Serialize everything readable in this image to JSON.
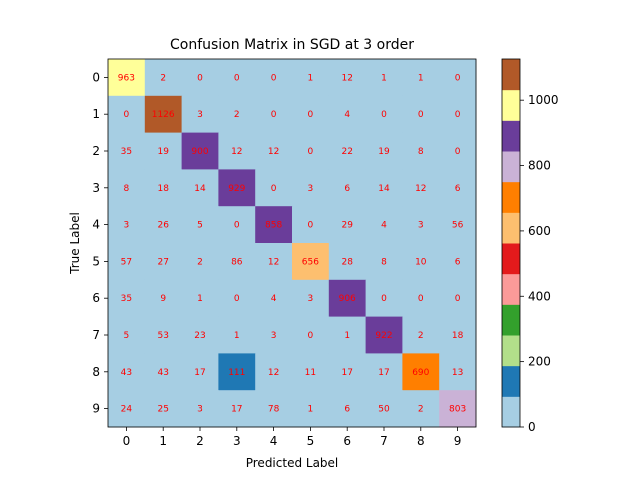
{
  "chart_data": {
    "type": "heatmap",
    "title": "Confusion Matrix in SGD at 3 order",
    "xlabel": "Predicted Label",
    "ylabel": "True Label",
    "x_categories": [
      "0",
      "1",
      "2",
      "3",
      "4",
      "5",
      "6",
      "7",
      "8",
      "9"
    ],
    "y_categories": [
      "0",
      "1",
      "2",
      "3",
      "4",
      "5",
      "6",
      "7",
      "8",
      "9"
    ],
    "matrix": [
      [
        963,
        2,
        0,
        0,
        0,
        1,
        12,
        1,
        1,
        0
      ],
      [
        0,
        1126,
        3,
        2,
        0,
        0,
        4,
        0,
        0,
        0
      ],
      [
        35,
        19,
        900,
        12,
        12,
        0,
        22,
        19,
        8,
        0
      ],
      [
        8,
        18,
        14,
        929,
        0,
        3,
        6,
        14,
        12,
        6
      ],
      [
        3,
        26,
        5,
        0,
        858,
        0,
        29,
        4,
        3,
        56
      ],
      [
        57,
        27,
        2,
        86,
        12,
        656,
        28,
        8,
        10,
        6
      ],
      [
        35,
        9,
        1,
        0,
        4,
        3,
        906,
        0,
        0,
        0
      ],
      [
        5,
        53,
        23,
        1,
        3,
        0,
        1,
        922,
        2,
        18
      ],
      [
        43,
        43,
        17,
        111,
        12,
        11,
        17,
        17,
        690,
        13
      ],
      [
        24,
        25,
        3,
        17,
        78,
        1,
        6,
        50,
        2,
        803
      ]
    ],
    "colormap": "Paired",
    "cell_label_color": "#ff0000",
    "colorbar": {
      "range": [
        0,
        1126
      ],
      "ticks": [
        0,
        200,
        400,
        600,
        800,
        1000
      ],
      "colors": [
        "#a6cee3",
        "#1f78b4",
        "#b2df8a",
        "#33a02c",
        "#fb9a99",
        "#e31a1c",
        "#fdbf6f",
        "#ff7f00",
        "#cab2d6",
        "#6a3d9a",
        "#ffff99",
        "#b15928"
      ]
    }
  }
}
